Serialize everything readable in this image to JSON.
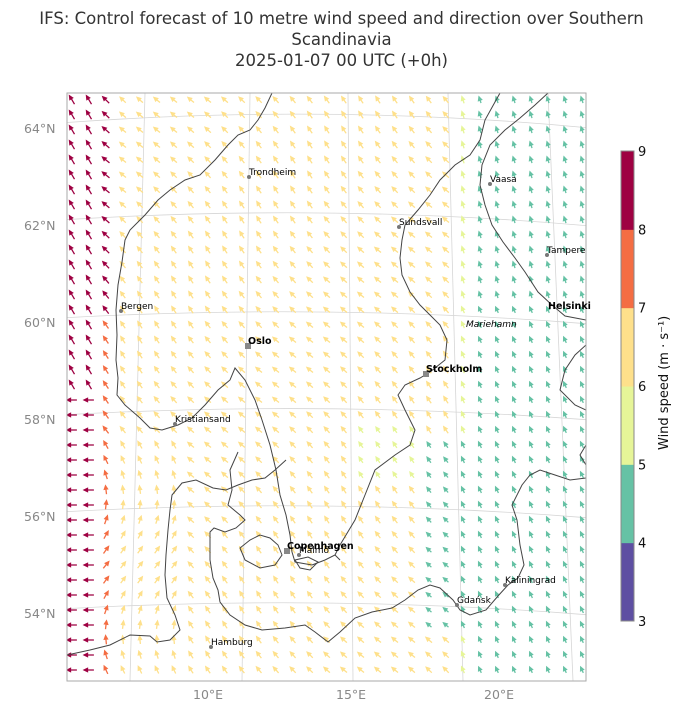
{
  "title": {
    "line1": "IFS: Control forecast of 10 metre wind speed and direction over Southern",
    "line2": "Scandinavia",
    "line3": "2025-01-07 00 UTC (+0h)"
  },
  "map": {
    "lat_labels": [
      "64°N",
      "62°N",
      "60°N",
      "58°N",
      "56°N",
      "54°N"
    ],
    "lon_labels": [
      "10°E",
      "15°E",
      "20°E"
    ]
  },
  "cities": [
    {
      "name": "Trondheim",
      "bold": false,
      "italic": false,
      "marker": "dot"
    },
    {
      "name": "Vaasa",
      "bold": false,
      "italic": false,
      "marker": "dot"
    },
    {
      "name": "Sundsvall",
      "bold": false,
      "italic": false,
      "marker": "dot"
    },
    {
      "name": "Tampere",
      "bold": false,
      "italic": false,
      "marker": "dot"
    },
    {
      "name": "Bergen",
      "bold": false,
      "italic": false,
      "marker": "dot"
    },
    {
      "name": "Helsinki",
      "bold": true,
      "italic": false,
      "marker": "none"
    },
    {
      "name": "Mariehamn",
      "bold": false,
      "italic": true,
      "marker": "none"
    },
    {
      "name": "Oslo",
      "bold": true,
      "italic": false,
      "marker": "square"
    },
    {
      "name": "Stockholm",
      "bold": true,
      "italic": false,
      "marker": "square"
    },
    {
      "name": "Kristiansand",
      "bold": false,
      "italic": false,
      "marker": "dot"
    },
    {
      "name": "Copenhagen",
      "bold": true,
      "italic": false,
      "marker": "square"
    },
    {
      "name": "Malmö",
      "bold": false,
      "italic": false,
      "marker": "dot"
    },
    {
      "name": "Kaliningrad",
      "bold": false,
      "italic": false,
      "marker": "dot"
    },
    {
      "name": "Gdańsk",
      "bold": false,
      "italic": false,
      "marker": "dot"
    },
    {
      "name": "Hamburg",
      "bold": false,
      "italic": false,
      "marker": "dot"
    }
  ],
  "colorbar": {
    "label": "Wind speed (m · s⁻¹)",
    "ticks": [
      "3",
      "4",
      "5",
      "6",
      "7",
      "8",
      "9"
    ],
    "colors": [
      "#5e4fa2",
      "#66c2a5",
      "#e6f598",
      "#fee08b",
      "#f46d43",
      "#9e0142"
    ]
  }
}
